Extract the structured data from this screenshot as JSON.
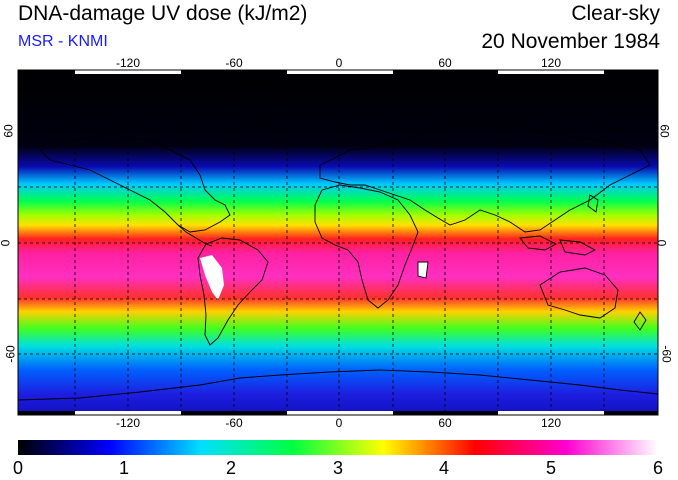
{
  "header": {
    "title": "DNA-damage UV dose (kJ/m2)",
    "subtitle": "MSR - KNMI",
    "sky_condition": "Clear-sky",
    "date": "20 November 1984"
  },
  "axes": {
    "lon_ticks": [
      "-120",
      "-60",
      "0",
      "60",
      "120"
    ],
    "lat_ticks_left": [
      "60",
      "0",
      "-60"
    ],
    "lat_ticks_right": [
      "60",
      "0",
      "-60"
    ]
  },
  "colorbar": {
    "labels": [
      "0",
      "1",
      "2",
      "3",
      "4",
      "5",
      "6"
    ],
    "min": 0,
    "max": 6,
    "colors": [
      "#000000",
      "#0000ff",
      "#00e0ff",
      "#00ff40",
      "#ffff00",
      "#ff0000",
      "#ff00d0",
      "#ffffff"
    ]
  },
  "map_legend": {
    "overlays": [
      "coastlines",
      "dashed lat/lon grid"
    ]
  }
}
